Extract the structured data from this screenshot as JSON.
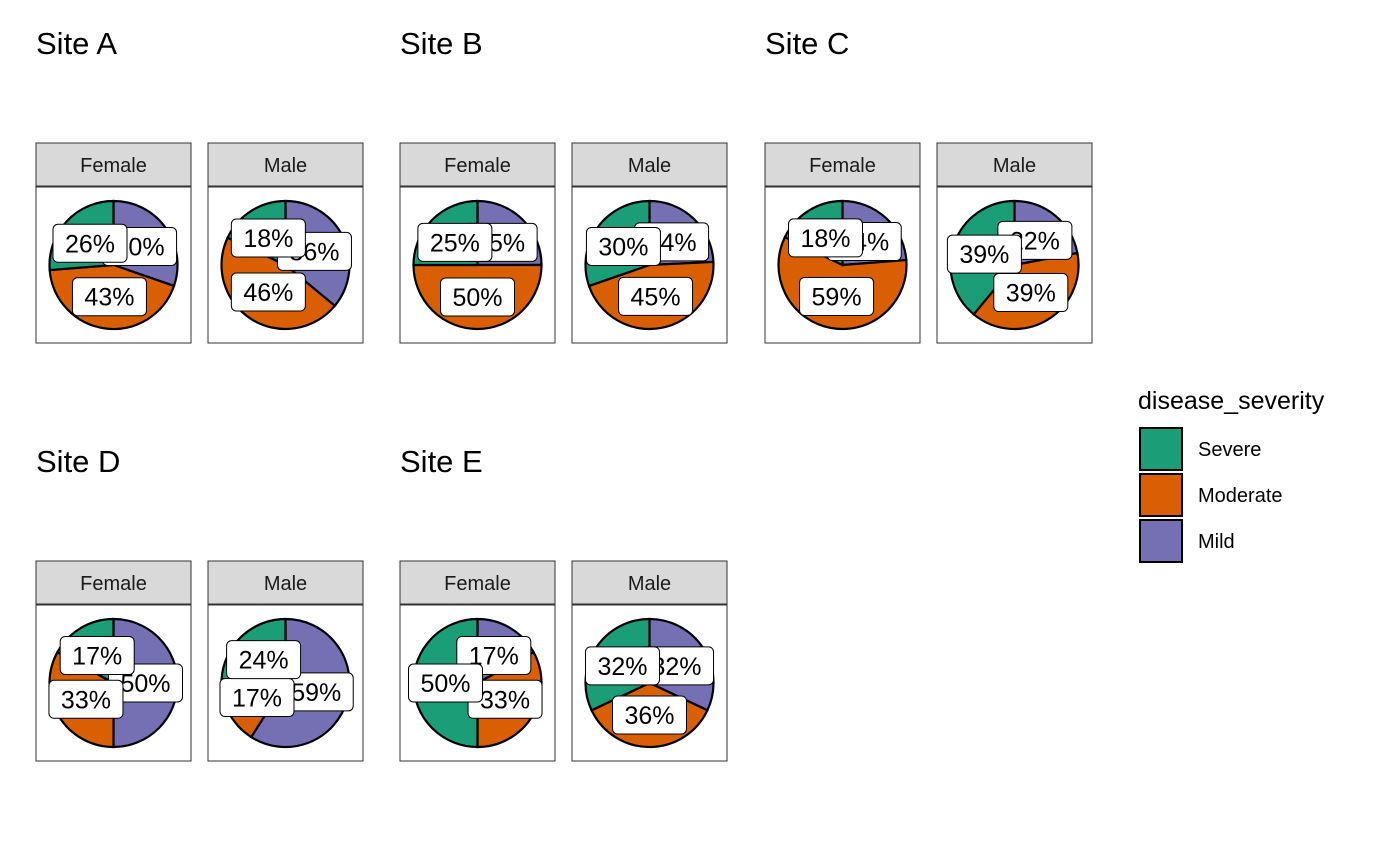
{
  "chart_data": {
    "type": "pie",
    "legend": {
      "title": "disease_severity",
      "position": "right",
      "entries": [
        {
          "name": "Severe",
          "color": "#1B9E77"
        },
        {
          "name": "Moderate",
          "color": "#D95F02"
        },
        {
          "name": "Mild",
          "color": "#7570B3"
        }
      ]
    },
    "sites": [
      {
        "title": "Site A",
        "panels": [
          {
            "label": "Female",
            "values": {
              "Severe": 26,
              "Moderate": 43,
              "Mild": 30
            }
          },
          {
            "label": "Male",
            "values": {
              "Severe": 18,
              "Moderate": 46,
              "Mild": 36
            }
          }
        ]
      },
      {
        "title": "Site B",
        "panels": [
          {
            "label": "Female",
            "values": {
              "Severe": 25,
              "Moderate": 50,
              "Mild": 25
            }
          },
          {
            "label": "Male",
            "values": {
              "Severe": 30,
              "Moderate": 45,
              "Mild": 24
            }
          }
        ]
      },
      {
        "title": "Site C",
        "panels": [
          {
            "label": "Female",
            "values": {
              "Severe": 18,
              "Moderate": 59,
              "Mild": 24
            }
          },
          {
            "label": "Male",
            "values": {
              "Severe": 39,
              "Moderate": 39,
              "Mild": 22
            }
          }
        ]
      },
      {
        "title": "Site D",
        "panels": [
          {
            "label": "Female",
            "values": {
              "Severe": 17,
              "Moderate": 33,
              "Mild": 50
            }
          },
          {
            "label": "Male",
            "values": {
              "Severe": 24,
              "Moderate": 17,
              "Mild": 59
            }
          }
        ]
      },
      {
        "title": "Site E",
        "panels": [
          {
            "label": "Female",
            "values": {
              "Severe": 50,
              "Moderate": 33,
              "Mild": 17
            }
          },
          {
            "label": "Male",
            "values": {
              "Severe": 32,
              "Moderate": 36,
              "Mild": 32
            }
          }
        ]
      }
    ]
  }
}
